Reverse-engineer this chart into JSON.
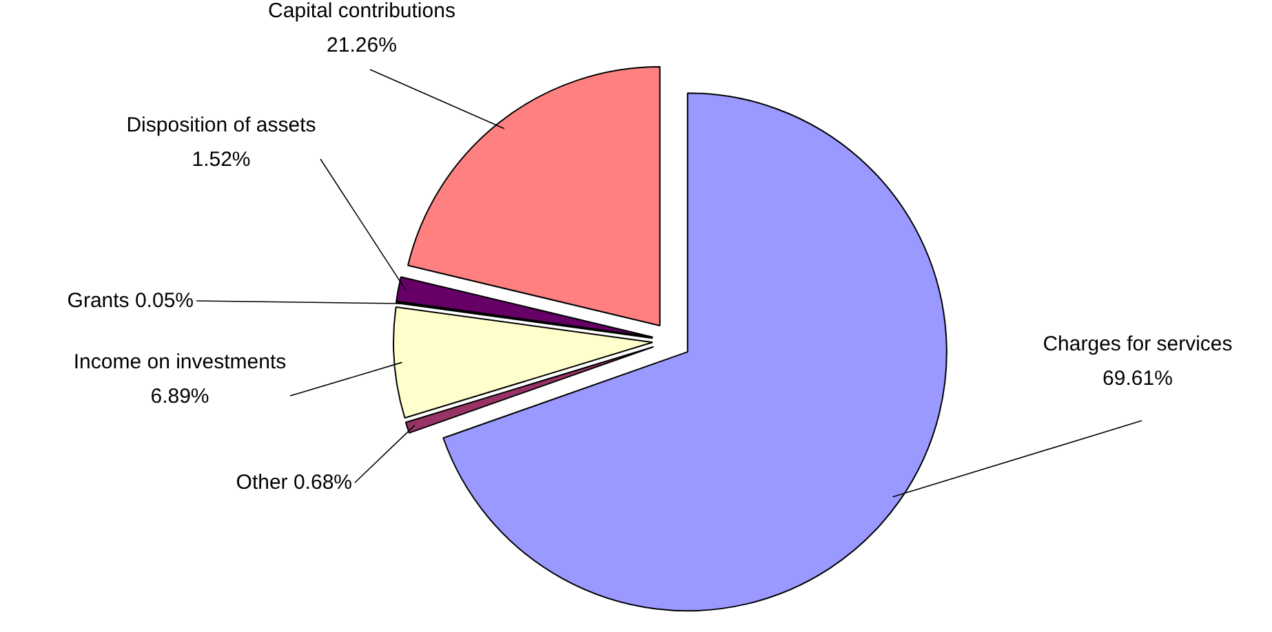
{
  "chart_data": {
    "type": "pie",
    "categories": [
      "Charges for services",
      "Other",
      "Income on investments",
      "Grants",
      "Disposition of assets",
      "Capital contributions"
    ],
    "values": [
      69.61,
      0.68,
      6.89,
      0.05,
      1.52,
      21.26
    ],
    "value_labels": [
      "69.61%",
      "0.68%",
      "6.89%",
      "0.05%",
      "1.52%",
      "21.26%"
    ],
    "colors": [
      "#9999ff",
      "#993366",
      "#ffffcc",
      "#ccffff",
      "#660066",
      "#ff8080"
    ]
  }
}
